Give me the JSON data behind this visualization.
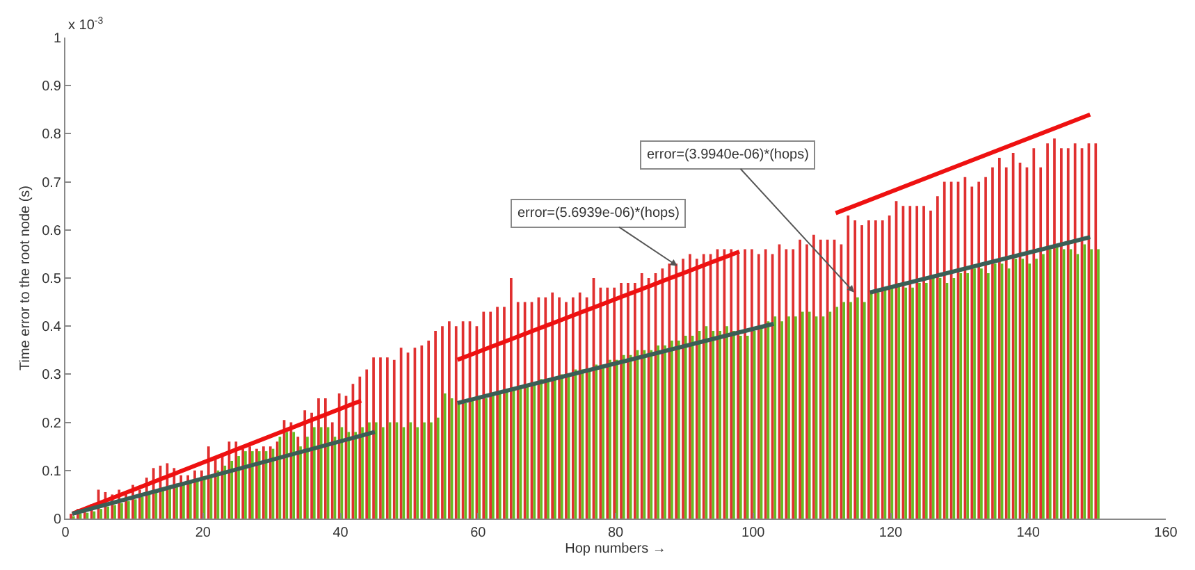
{
  "chart_data": {
    "type": "bar",
    "xlabel": "Hop numbers →",
    "ylabel": "Time error to the root node (s)",
    "x": [
      1,
      2,
      3,
      4,
      5,
      6,
      7,
      8,
      9,
      10,
      11,
      12,
      13,
      14,
      15,
      16,
      17,
      18,
      19,
      20,
      21,
      22,
      23,
      24,
      25,
      26,
      27,
      28,
      29,
      30,
      31,
      32,
      33,
      34,
      35,
      36,
      37,
      38,
      39,
      40,
      41,
      42,
      43,
      44,
      45,
      46,
      47,
      48,
      49,
      50,
      51,
      52,
      53,
      54,
      55,
      56,
      57,
      58,
      59,
      60,
      61,
      62,
      63,
      64,
      65,
      66,
      67,
      68,
      69,
      70,
      71,
      72,
      73,
      74,
      75,
      76,
      77,
      78,
      79,
      80,
      81,
      82,
      83,
      84,
      85,
      86,
      87,
      88,
      89,
      90,
      91,
      92,
      93,
      94,
      95,
      96,
      97,
      98,
      99,
      100,
      101,
      102,
      103,
      104,
      105,
      106,
      107,
      108,
      109,
      110,
      111,
      112,
      113,
      114,
      115,
      116,
      117,
      118,
      119,
      120,
      121,
      122,
      123,
      124,
      125,
      126,
      127,
      128,
      129,
      130,
      131,
      132,
      133,
      134,
      135,
      136,
      137,
      138,
      139,
      140,
      141,
      142,
      143,
      144,
      145,
      146,
      147,
      148,
      149,
      150
    ],
    "series": [
      {
        "color": "#e03030",
        "values": [
          0.01,
          0.02,
          0.02,
          0.03,
          0.06,
          0.055,
          0.05,
          0.06,
          0.055,
          0.07,
          0.06,
          0.085,
          0.105,
          0.11,
          0.115,
          0.105,
          0.09,
          0.09,
          0.1,
          0.1,
          0.15,
          0.13,
          0.135,
          0.16,
          0.16,
          0.145,
          0.15,
          0.145,
          0.15,
          0.15,
          0.16,
          0.205,
          0.2,
          0.17,
          0.225,
          0.22,
          0.25,
          0.25,
          0.2,
          0.26,
          0.255,
          0.28,
          0.295,
          0.31,
          0.335,
          0.335,
          0.335,
          0.33,
          0.355,
          0.345,
          0.355,
          0.36,
          0.37,
          0.39,
          0.4,
          0.41,
          0.4,
          0.41,
          0.41,
          0.4,
          0.43,
          0.43,
          0.44,
          0.44,
          0.5,
          0.45,
          0.45,
          0.45,
          0.46,
          0.46,
          0.47,
          0.46,
          0.45,
          0.46,
          0.47,
          0.46,
          0.5,
          0.48,
          0.48,
          0.48,
          0.49,
          0.49,
          0.49,
          0.51,
          0.5,
          0.51,
          0.52,
          0.53,
          0.53,
          0.54,
          0.55,
          0.54,
          0.55,
          0.55,
          0.56,
          0.56,
          0.56,
          0.55,
          0.56,
          0.56,
          0.55,
          0.56,
          0.55,
          0.57,
          0.56,
          0.56,
          0.58,
          0.57,
          0.59,
          0.58,
          0.58,
          0.58,
          0.57,
          0.63,
          0.62,
          0.61,
          0.62,
          0.62,
          0.62,
          0.63,
          0.66,
          0.65,
          0.65,
          0.65,
          0.65,
          0.64,
          0.67,
          0.7,
          0.7,
          0.7,
          0.71,
          0.69,
          0.7,
          0.71,
          0.73,
          0.75,
          0.73,
          0.76,
          0.74,
          0.73,
          0.77,
          0.73,
          0.78,
          0.79,
          0.77,
          0.77,
          0.78,
          0.77,
          0.78,
          0.78
        ]
      },
      {
        "color": "#66bb22",
        "values": [
          0.005,
          0.01,
          0.012,
          0.015,
          0.02,
          0.025,
          0.028,
          0.032,
          0.036,
          0.04,
          0.045,
          0.05,
          0.055,
          0.06,
          0.065,
          0.07,
          0.07,
          0.075,
          0.08,
          0.085,
          0.09,
          0.1,
          0.11,
          0.12,
          0.13,
          0.14,
          0.14,
          0.14,
          0.14,
          0.145,
          0.17,
          0.18,
          0.18,
          0.15,
          0.17,
          0.19,
          0.19,
          0.19,
          0.17,
          0.19,
          0.18,
          0.18,
          0.19,
          0.2,
          0.2,
          0.19,
          0.2,
          0.2,
          0.19,
          0.2,
          0.19,
          0.2,
          0.2,
          0.21,
          0.26,
          0.25,
          0.24,
          0.24,
          0.25,
          0.25,
          0.25,
          0.26,
          0.26,
          0.27,
          0.27,
          0.27,
          0.28,
          0.28,
          0.29,
          0.29,
          0.29,
          0.3,
          0.3,
          0.31,
          0.31,
          0.31,
          0.32,
          0.32,
          0.33,
          0.33,
          0.34,
          0.34,
          0.35,
          0.35,
          0.35,
          0.36,
          0.36,
          0.37,
          0.37,
          0.38,
          0.38,
          0.39,
          0.4,
          0.39,
          0.39,
          0.4,
          0.39,
          0.38,
          0.38,
          0.39,
          0.4,
          0.41,
          0.42,
          0.41,
          0.42,
          0.42,
          0.43,
          0.43,
          0.42,
          0.42,
          0.43,
          0.44,
          0.45,
          0.45,
          0.46,
          0.45,
          0.47,
          0.47,
          0.48,
          0.48,
          0.49,
          0.48,
          0.48,
          0.49,
          0.49,
          0.5,
          0.5,
          0.49,
          0.5,
          0.51,
          0.51,
          0.52,
          0.52,
          0.51,
          0.53,
          0.53,
          0.52,
          0.54,
          0.54,
          0.53,
          0.54,
          0.55,
          0.56,
          0.57,
          0.56,
          0.56,
          0.55,
          0.57,
          0.56,
          0.56
        ]
      },
      {
        "type": "line",
        "color": "#ee1111",
        "x": [
          1,
          43
        ],
        "values": [
          0.01,
          0.245
        ]
      },
      {
        "type": "line",
        "color": "#ee1111",
        "x": [
          57,
          98
        ],
        "values": [
          0.33,
          0.555
        ]
      },
      {
        "type": "line",
        "color": "#ee1111",
        "x": [
          112,
          149
        ],
        "values": [
          0.635,
          0.84
        ]
      },
      {
        "type": "line",
        "color": "#3b5e55",
        "x": [
          1,
          45
        ],
        "values": [
          0.01,
          0.18
        ]
      },
      {
        "type": "line",
        "color": "#3b5e55",
        "x": [
          57,
          103
        ],
        "values": [
          0.24,
          0.405
        ]
      },
      {
        "type": "line",
        "color": "#3b5e55",
        "x": [
          117,
          149
        ],
        "values": [
          0.47,
          0.585
        ]
      }
    ],
    "xlim": [
      0,
      160
    ],
    "xticks": [
      0,
      20,
      40,
      60,
      80,
      100,
      120,
      140,
      160
    ],
    "ylim": [
      0,
      1
    ],
    "yticks": [
      0,
      0.1,
      0.2,
      0.3,
      0.4,
      0.5,
      0.6,
      0.7,
      0.8,
      0.9,
      1
    ],
    "annotations": [
      "x 10$^{-3}$",
      {
        "text": "error=(5.6939e-06)*(hops)",
        "x": 89,
        "y": 0.525
      },
      {
        "text": "error=(3.9940e-06)*(hops)",
        "x": 114.7,
        "y": 0.47
      }
    ],
    "grid": false
  }
}
